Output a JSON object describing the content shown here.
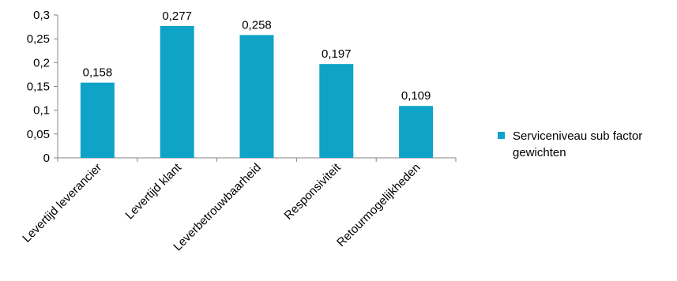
{
  "chart_data": {
    "type": "bar",
    "categories": [
      "Levertijd leverancier",
      "Levertijd klant",
      "Leverbetrouwbaarheid",
      "Responsiviteit",
      "Retourmogelijkheden"
    ],
    "series": [
      {
        "name": "Serviceniveau sub factor gewichten",
        "values": [
          0.158,
          0.277,
          0.258,
          0.197,
          0.109
        ],
        "value_labels": [
          "0,158",
          "0,277",
          "0,258",
          "0,197",
          "0,109"
        ],
        "color": "#0fa3c8"
      }
    ],
    "ylim": [
      0,
      0.3
    ],
    "yticks": [
      0,
      0.05,
      0.1,
      0.15,
      0.2,
      0.25,
      0.3
    ],
    "ytick_labels": [
      "0",
      "0,05",
      "0,1",
      "0,15",
      "0,2",
      "0,25",
      "0,3"
    ],
    "grid": false,
    "legend": {
      "position": "right",
      "lines": [
        "Serviceniveau sub factor",
        "gewichten"
      ]
    },
    "axis_color": "#868686"
  }
}
